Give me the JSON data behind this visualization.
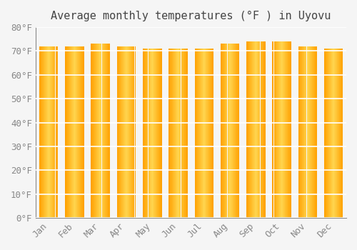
{
  "title": "Average monthly temperatures (°F ) in Uyovu",
  "months": [
    "Jan",
    "Feb",
    "Mar",
    "Apr",
    "May",
    "Jun",
    "Jul",
    "Aug",
    "Sep",
    "Oct",
    "Nov",
    "Dec"
  ],
  "values": [
    72,
    72,
    73,
    72,
    71,
    71,
    71,
    73,
    74,
    74,
    72,
    71
  ],
  "ylim": [
    0,
    80
  ],
  "ytick_step": 10,
  "bar_color_center": "#FFD54F",
  "bar_color_edge": "#FFA000",
  "background_color": "#F5F5F5",
  "grid_color": "#FFFFFF",
  "title_fontsize": 11,
  "tick_fontsize": 9,
  "bar_width": 0.72
}
